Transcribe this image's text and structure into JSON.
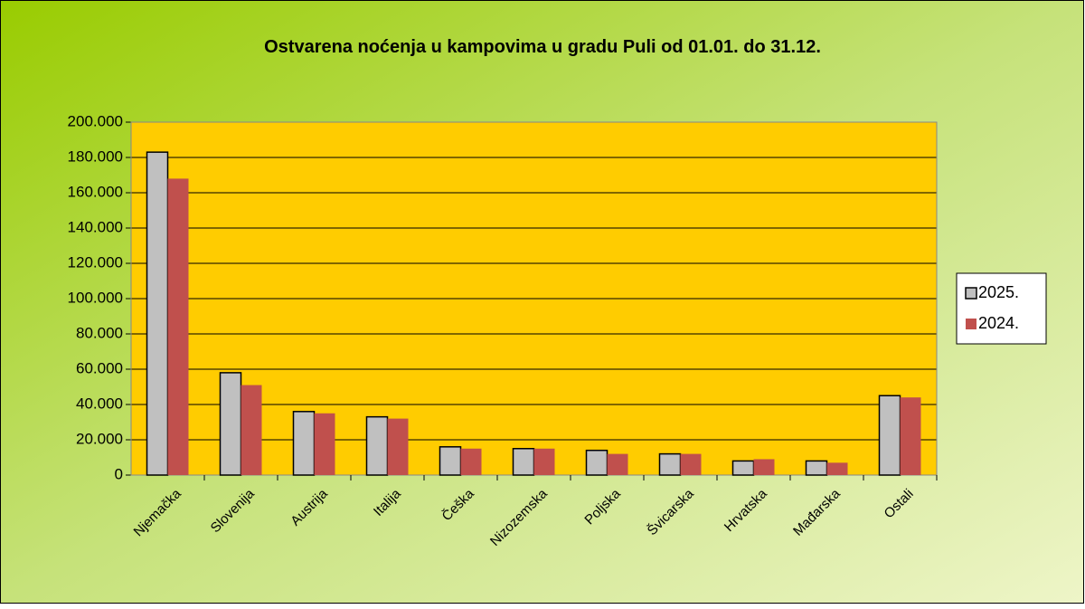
{
  "chart_data": {
    "type": "bar",
    "title": "Ostvarena noćenja  u kampovima  u gradu Puli od 01.01. do 31.12.",
    "categories": [
      "Njemačka",
      "Slovenija",
      "Austrija",
      "Italija",
      "Češka",
      "Nizozemska",
      "Poljska",
      "Švicarska",
      "Hrvatska",
      "Mađarska",
      "Ostali"
    ],
    "series": [
      {
        "name": "2025.",
        "color": "#c0c0c0",
        "values": [
          183000,
          58000,
          36000,
          33000,
          16000,
          15000,
          14000,
          12000,
          8000,
          8000,
          45000
        ]
      },
      {
        "name": "2024.",
        "color": "#c0504d",
        "values": [
          168000,
          51000,
          35000,
          32000,
          15000,
          15000,
          12000,
          12000,
          9000,
          7000,
          44000
        ]
      }
    ],
    "ylim": [
      0,
      200000
    ],
    "yticks": [
      0,
      {
        "value": 20000,
        "label": "20.000"
      },
      {
        "value": 40000,
        "label": "40.000"
      },
      {
        "value": 60000,
        "label": "60.000"
      },
      {
        "value": 80000,
        "label": "80.000"
      },
      {
        "value": 100000,
        "label": "100.000"
      },
      {
        "value": 120000,
        "label": "120.000"
      },
      {
        "value": 140000,
        "label": "140.000"
      },
      {
        "value": 160000,
        "label": "160.000"
      },
      {
        "value": 180000,
        "label": "180.000"
      },
      {
        "value": 200000,
        "label": "200.000"
      }
    ],
    "grid": true,
    "legend": "right"
  }
}
